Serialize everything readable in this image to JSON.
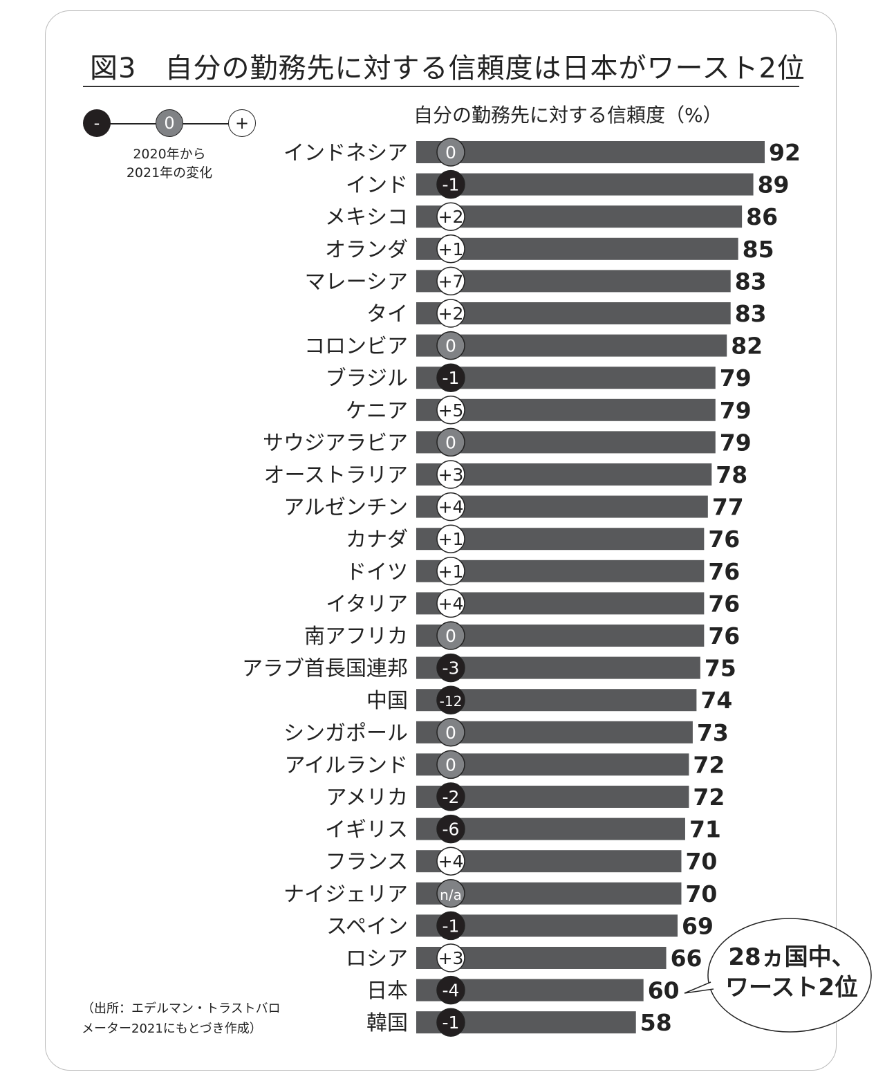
{
  "title": "図3　自分の勤務先に対する信頼度は日本がワースト2位",
  "legend": {
    "minus": "-",
    "zero": "0",
    "plus": "+",
    "note_line1": "2020年から",
    "note_line2": "2021年の変化"
  },
  "source_line1": "（出所：エデルマン・トラストバロ",
  "source_line2": "メーター2021にもとづき作成）",
  "callout_line1": "28ヵ国中、",
  "callout_line2": "ワースト2位",
  "colors": {
    "bar": "#58595b",
    "negative": "#231f20",
    "zero": "#808285",
    "positive": "#ffffff"
  },
  "chart_data": {
    "type": "bar",
    "orientation": "horizontal",
    "title": "自分の勤務先に対する信頼度（%）",
    "categories": [
      "インドネシア",
      "インド",
      "メキシコ",
      "オランダ",
      "マレーシア",
      "タイ",
      "コロンビア",
      "ブラジル",
      "ケニア",
      "サウジアラビア",
      "オーストラリア",
      "アルゼンチン",
      "カナダ",
      "ドイツ",
      "イタリア",
      "南アフリカ",
      "アラブ首長国連邦",
      "中国",
      "シンガポール",
      "アイルランド",
      "アメリカ",
      "イギリス",
      "フランス",
      "ナイジェリア",
      "スペイン",
      "ロシア",
      "日本",
      "韓国"
    ],
    "values": [
      92,
      89,
      86,
      85,
      83,
      83,
      82,
      79,
      79,
      79,
      78,
      77,
      76,
      76,
      76,
      76,
      75,
      74,
      73,
      72,
      72,
      71,
      70,
      70,
      69,
      66,
      60,
      58
    ],
    "changes": [
      "0",
      "-1",
      "+2",
      "+1",
      "+7",
      "+2",
      "0",
      "-1",
      "+5",
      "0",
      "+3",
      "+4",
      "+1",
      "+1",
      "+4",
      "0",
      "-3",
      "-12",
      "0",
      "0",
      "-2",
      "-6",
      "+4",
      "n/a",
      "-1",
      "+3",
      "-4",
      "-1"
    ],
    "xlim": [
      0,
      92
    ]
  }
}
